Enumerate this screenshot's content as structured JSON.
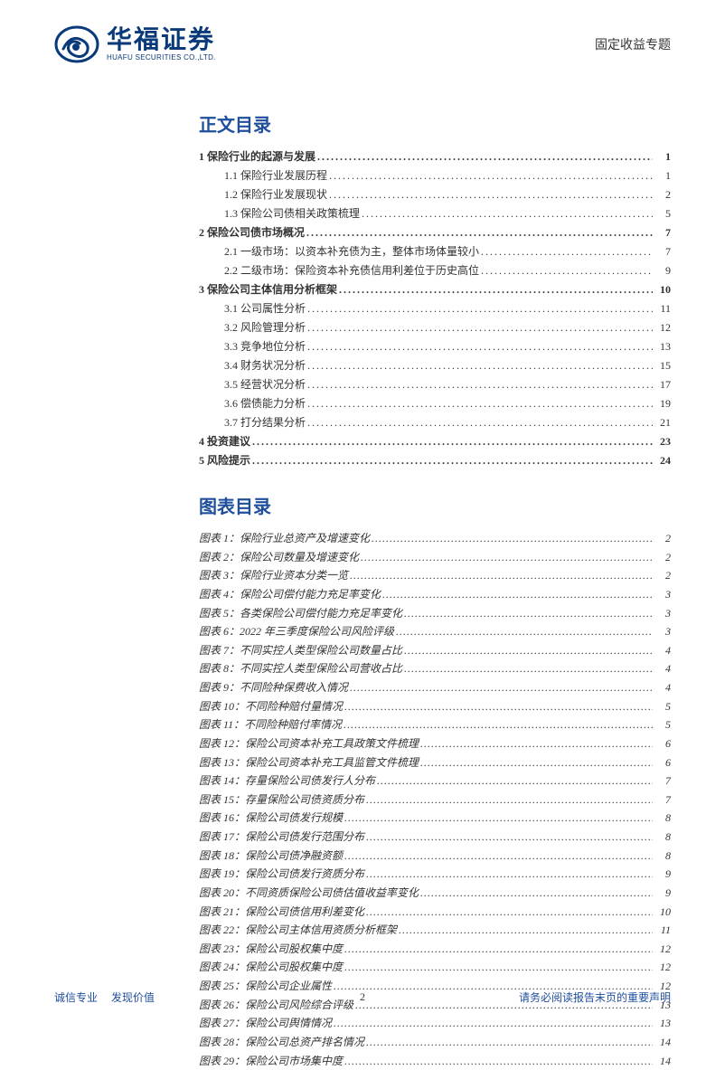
{
  "header": {
    "logo_cn": "华福证券",
    "logo_en": "HUAFU SECURITIES CO.,LTD.",
    "category": "固定收益专题"
  },
  "colors": {
    "brand": "#0a3a7a",
    "accent": "#1f4e9c",
    "text": "#333333",
    "background": "#ffffff"
  },
  "typography": {
    "body_font": "SimSun",
    "heading_font": "SimHei",
    "section_title_size_pt": 20,
    "toc_row_size_pt": 12,
    "fig_row_size_pt": 12,
    "logo_cn_size_pt": 28,
    "logo_en_size_pt": 8
  },
  "toc": {
    "title": "正文目录",
    "items": [
      {
        "level": 1,
        "label": "1 保险行业的起源与发展",
        "page": "1"
      },
      {
        "level": 2,
        "label": "1.1 保险行业发展历程",
        "page": "1"
      },
      {
        "level": 2,
        "label": "1.2 保险行业发展现状",
        "page": "2"
      },
      {
        "level": 2,
        "label": "1.3 保险公司债相关政策梳理",
        "page": "5"
      },
      {
        "level": 1,
        "label": "2 保险公司债市场概况",
        "page": "7"
      },
      {
        "level": 2,
        "label": "2.1 一级市场：以资本补充债为主，整体市场体量较小",
        "page": "7"
      },
      {
        "level": 2,
        "label": "2.2 二级市场：保险资本补充债信用利差位于历史高位",
        "page": "9"
      },
      {
        "level": 1,
        "label": "3 保险公司主体信用分析框架",
        "page": "10"
      },
      {
        "level": 2,
        "label": "3.1 公司属性分析",
        "page": "11"
      },
      {
        "level": 2,
        "label": "3.2 风险管理分析",
        "page": "12"
      },
      {
        "level": 2,
        "label": "3.3 竞争地位分析",
        "page": "13"
      },
      {
        "level": 2,
        "label": "3.4 财务状况分析",
        "page": "15"
      },
      {
        "level": 2,
        "label": "3.5 经营状况分析",
        "page": "17"
      },
      {
        "level": 2,
        "label": "3.6 偿债能力分析",
        "page": "19"
      },
      {
        "level": 2,
        "label": "3.7 打分结果分析",
        "page": "21"
      },
      {
        "level": 1,
        "label": "4 投资建议",
        "page": "23"
      },
      {
        "level": 1,
        "label": "5 风险提示",
        "page": "24"
      }
    ]
  },
  "figures": {
    "title": "图表目录",
    "items": [
      {
        "label": "图表 1：保险行业总资产及增速变化",
        "page": "2"
      },
      {
        "label": "图表 2：保险公司数量及增速变化",
        "page": "2"
      },
      {
        "label": "图表 3：保险行业资本分类一览",
        "page": "2"
      },
      {
        "label": "图表 4：保险公司偿付能力充足率变化",
        "page": "3"
      },
      {
        "label": "图表 5：各类保险公司偿付能力充足率变化",
        "page": "3"
      },
      {
        "label": "图表 6：2022 年三季度保险公司风险评级",
        "page": "3"
      },
      {
        "label": "图表 7：不同实控人类型保险公司数量占比",
        "page": "4"
      },
      {
        "label": "图表 8：不同实控人类型保险公司营收占比",
        "page": "4"
      },
      {
        "label": "图表 9：不同险种保费收入情况",
        "page": "4"
      },
      {
        "label": "图表 10：不同险种赔付量情况",
        "page": "5"
      },
      {
        "label": "图表 11：不同险种赔付率情况",
        "page": "5"
      },
      {
        "label": "图表 12：保险公司资本补充工具政策文件梳理",
        "page": "6"
      },
      {
        "label": "图表 13：保险公司资本补充工具监管文件梳理",
        "page": "6"
      },
      {
        "label": "图表 14：存量保险公司债发行人分布",
        "page": "7"
      },
      {
        "label": "图表 15：存量保险公司债资质分布",
        "page": "7"
      },
      {
        "label": "图表 16：保险公司债发行规模",
        "page": "8"
      },
      {
        "label": "图表 17：保险公司债发行范围分布",
        "page": "8"
      },
      {
        "label": "图表 18：保险公司债净融资额",
        "page": "8"
      },
      {
        "label": "图表 19：保险公司债发行资质分布",
        "page": "9"
      },
      {
        "label": "图表 20：不同资质保险公司债估值收益率变化",
        "page": "9"
      },
      {
        "label": "图表 21：保险公司债信用利差变化",
        "page": "10"
      },
      {
        "label": "图表 22：保险公司主体信用资质分析框架",
        "page": "11"
      },
      {
        "label": "图表 23：保险公司股权集中度",
        "page": "12"
      },
      {
        "label": "图表 24：保险公司股权集中度",
        "page": "12"
      },
      {
        "label": "图表 25：保险公司企业属性",
        "page": "12"
      },
      {
        "label": "图表 26：保险公司风险综合评级",
        "page": "13"
      },
      {
        "label": "图表 27：保险公司舆情情况",
        "page": "13"
      },
      {
        "label": "图表 28：保险公司总资产排名情况",
        "page": "14"
      },
      {
        "label": "图表 29：保险公司市场集中度",
        "page": "14"
      }
    ]
  },
  "footer": {
    "left_a": "诚信专业",
    "left_b": "发现价值",
    "page_number": "2",
    "right": "请务必阅读报告末页的重要声明"
  }
}
